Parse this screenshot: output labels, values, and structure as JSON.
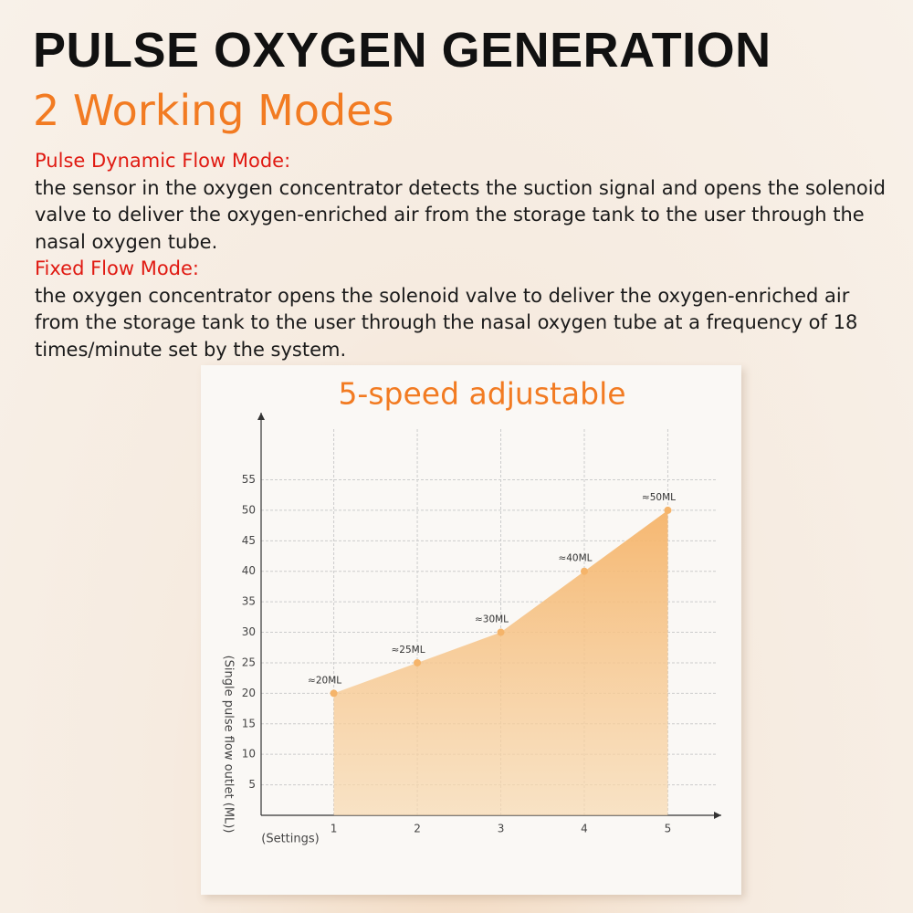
{
  "header": {
    "title": "PULSE OXYGEN GENERATION",
    "subtitle": "2 Working Modes"
  },
  "modes": [
    {
      "name": "Pulse Dynamic Flow Mode:",
      "description": "the sensor in the oxygen concentrator detects the suction signal and opens the solenoid valve to deliver the oxygen-enriched air from the storage tank to the user through the nasal oxygen tube."
    },
    {
      "name": "Fixed Flow Mode:",
      "description": "the oxygen concentrator opens the solenoid valve to deliver the oxygen-enriched air from the storage tank to the user through the nasal oxygen tube at a frequency of 18 times/minute set by the system."
    }
  ],
  "chart_data": {
    "type": "area",
    "title": "5-speed adjustable",
    "x_label": "(Settings)",
    "y_label": "(Single pulse flow outlet (ML))",
    "x": [
      1,
      2,
      3,
      4,
      5
    ],
    "values": [
      20,
      25,
      30,
      40,
      50
    ],
    "value_labels": [
      "≈20ML",
      "≈25ML",
      "≈30ML",
      "≈40ML",
      "≈50ML"
    ],
    "color": "#f5b46a",
    "xlim": [
      0.13,
      5.64
    ],
    "ylim": [
      0,
      66
    ],
    "xticks": [
      1,
      2,
      3,
      4,
      5
    ],
    "yticks": [
      5,
      10,
      15,
      20,
      25,
      30,
      35,
      40,
      45,
      50,
      55
    ],
    "grid": true
  }
}
